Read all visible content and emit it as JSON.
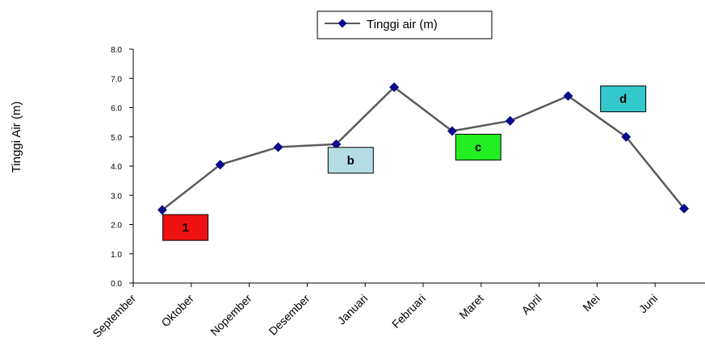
{
  "chart_data": {
    "type": "line",
    "ylabel": "Tinggi Air (m)",
    "xlabel": "",
    "title": "",
    "ylim": [
      0,
      8
    ],
    "yticks": [
      "0.0",
      "1.0",
      "2.0",
      "3.0",
      "4.0",
      "5.0",
      "6.0",
      "7.0",
      "8.0"
    ],
    "categories": [
      "September",
      "Oktober",
      "Nopember",
      "Desember",
      "Januari",
      "Februari",
      "Maret",
      "April",
      "Mei",
      "Juni"
    ],
    "series": [
      {
        "name": "Tinggi air (m)",
        "color": "#5a5a5a",
        "marker_color": "#0a0a8a",
        "x": [
          0.5,
          1.5,
          2.5,
          3.5,
          4.5,
          5.5,
          6.5,
          7.5,
          8.5,
          9.5
        ],
        "values": [
          2.5,
          4.05,
          4.65,
          4.75,
          6.7,
          5.2,
          5.55,
          6.4,
          5.0,
          2.55
        ]
      }
    ],
    "legend": {
      "position": "top-center",
      "label": "Tinggi air (m)"
    },
    "annotations": [
      {
        "label": "1",
        "x": 0.9,
        "y": 1.9,
        "color": "#ee1111"
      },
      {
        "label": "b",
        "x": 3.75,
        "y": 4.2,
        "color": "#b3dce3"
      },
      {
        "label": "c",
        "x": 5.95,
        "y": 4.65,
        "color": "#22ee22"
      },
      {
        "label": "d",
        "x": 8.45,
        "y": 6.3,
        "color": "#33c8cc"
      }
    ],
    "grid": false
  }
}
